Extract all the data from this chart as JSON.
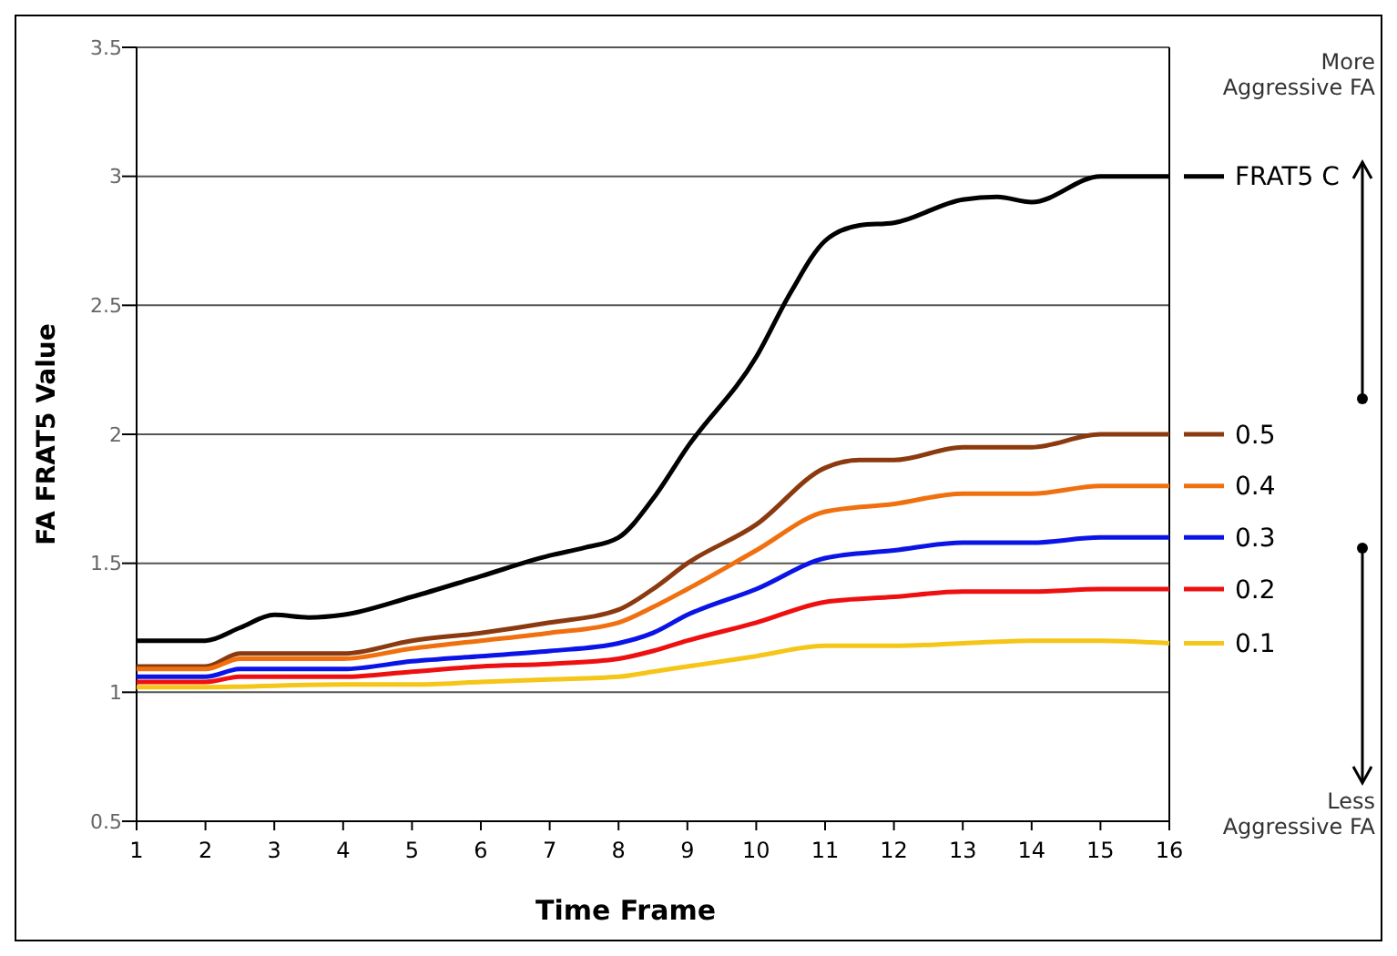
{
  "chart_data": {
    "type": "line",
    "xlabel": "Time Frame",
    "ylabel": "FA FRAT5 Value",
    "xlim": [
      1,
      16
    ],
    "xticks": [
      1,
      2,
      3,
      4,
      5,
      6,
      7,
      8,
      9,
      10,
      11,
      12,
      13,
      14,
      15,
      16
    ],
    "ylim": [
      0.5,
      3.5
    ],
    "yticks": [
      0.5,
      1,
      1.5,
      2,
      2.5,
      3,
      3.5
    ],
    "grid": "y",
    "legend": "right",
    "marker": "none",
    "line_style": "solid",
    "annotations": [
      "More Aggressive FA",
      "Less Aggressive FA"
    ],
    "series": [
      {
        "name": "FRAT5 C",
        "color": "#000000",
        "x": [
          1,
          2,
          2.5,
          3,
          3.5,
          4,
          5,
          6,
          7,
          7.5,
          8,
          8.5,
          9,
          10,
          10.5,
          11,
          11.5,
          12,
          13,
          13.5,
          14,
          15,
          16
        ],
        "values": [
          1.2,
          1.2,
          1.25,
          1.3,
          1.29,
          1.3,
          1.37,
          1.45,
          1.53,
          1.56,
          1.6,
          1.75,
          1.95,
          2.3,
          2.55,
          2.75,
          2.81,
          2.82,
          2.91,
          2.92,
          2.9,
          3.0,
          3.0
        ]
      },
      {
        "name": "0.5",
        "color": "#8b3a0f",
        "x": [
          1,
          2,
          2.5,
          4,
          5,
          6,
          7,
          8,
          8.5,
          9,
          10,
          11,
          11.5,
          12,
          13,
          14,
          15,
          16
        ],
        "values": [
          1.1,
          1.1,
          1.15,
          1.15,
          1.2,
          1.23,
          1.27,
          1.32,
          1.4,
          1.5,
          1.65,
          1.87,
          1.9,
          1.9,
          1.95,
          1.95,
          2.0,
          2.0
        ]
      },
      {
        "name": "0.4",
        "color": "#f07010",
        "x": [
          1,
          2,
          2.5,
          4,
          5,
          6,
          7,
          8,
          8.5,
          9,
          10,
          11,
          12,
          13,
          14,
          15,
          16
        ],
        "values": [
          1.09,
          1.09,
          1.13,
          1.13,
          1.17,
          1.2,
          1.23,
          1.27,
          1.33,
          1.4,
          1.55,
          1.7,
          1.73,
          1.77,
          1.77,
          1.8,
          1.8
        ]
      },
      {
        "name": "0.3",
        "color": "#0a14e6",
        "x": [
          1,
          2,
          2.5,
          4,
          5,
          6,
          7,
          8,
          8.5,
          9,
          10,
          11,
          12,
          13,
          14,
          15,
          16
        ],
        "values": [
          1.06,
          1.06,
          1.09,
          1.09,
          1.12,
          1.14,
          1.16,
          1.19,
          1.23,
          1.3,
          1.4,
          1.52,
          1.55,
          1.58,
          1.58,
          1.6,
          1.6
        ]
      },
      {
        "name": "0.2",
        "color": "#ee1010",
        "x": [
          1,
          2,
          2.5,
          4,
          5,
          6,
          7,
          8,
          8.5,
          9,
          10,
          11,
          12,
          13,
          14,
          15,
          16
        ],
        "values": [
          1.04,
          1.04,
          1.06,
          1.06,
          1.08,
          1.1,
          1.11,
          1.13,
          1.16,
          1.2,
          1.27,
          1.35,
          1.37,
          1.39,
          1.39,
          1.4,
          1.4
        ]
      },
      {
        "name": "0.1",
        "color": "#f5c518",
        "x": [
          1,
          2,
          4,
          5,
          6,
          7,
          8,
          8.5,
          9,
          10,
          11,
          12,
          13,
          14,
          15,
          16
        ],
        "values": [
          1.02,
          1.02,
          1.03,
          1.03,
          1.04,
          1.05,
          1.06,
          1.08,
          1.1,
          1.14,
          1.18,
          1.18,
          1.19,
          1.2,
          1.2,
          1.19
        ]
      }
    ]
  }
}
